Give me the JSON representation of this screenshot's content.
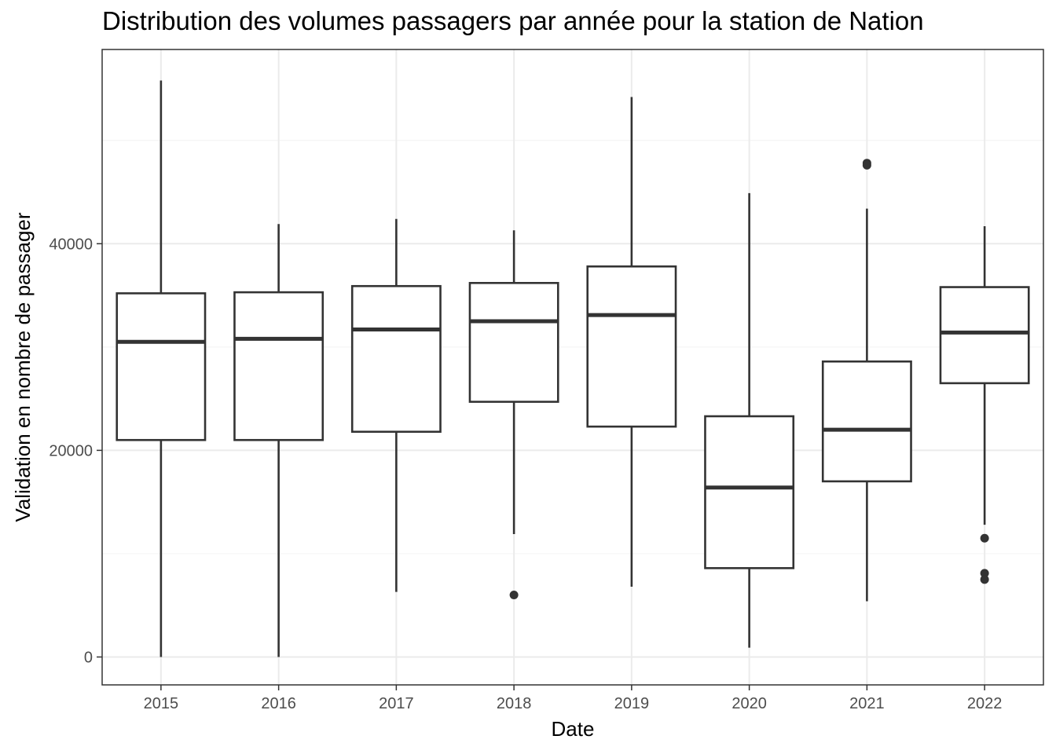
{
  "chart_data": {
    "type": "box",
    "title": "Distribution des volumes passagers par année pour la station de Nation",
    "xlabel": "Date",
    "ylabel": "Validation en nombre de passager",
    "ylim": [
      -2700,
      58800
    ],
    "yticks": [
      0,
      20000,
      40000
    ],
    "ytick_labels": [
      "0",
      "20000",
      "40000"
    ],
    "grid": true,
    "categories": [
      "2015",
      "2016",
      "2017",
      "2018",
      "2019",
      "2020",
      "2021",
      "2022"
    ],
    "boxes": [
      {
        "category": "2015",
        "whisker_low": 0,
        "q1": 21000,
        "median": 30500,
        "q3": 35200,
        "whisker_high": 55800,
        "outliers": []
      },
      {
        "category": "2016",
        "whisker_low": 0,
        "q1": 21000,
        "median": 30800,
        "q3": 35300,
        "whisker_high": 41900,
        "outliers": []
      },
      {
        "category": "2017",
        "whisker_low": 6300,
        "q1": 21800,
        "median": 31700,
        "q3": 35900,
        "whisker_high": 42400,
        "outliers": []
      },
      {
        "category": "2018",
        "whisker_low": 11900,
        "q1": 24700,
        "median": 32500,
        "q3": 36200,
        "whisker_high": 41300,
        "outliers": [
          6000
        ]
      },
      {
        "category": "2019",
        "whisker_low": 6800,
        "q1": 22300,
        "median": 33100,
        "q3": 37800,
        "whisker_high": 54200,
        "outliers": []
      },
      {
        "category": "2020",
        "whisker_low": 900,
        "q1": 8600,
        "median": 16400,
        "q3": 23300,
        "whisker_high": 44900,
        "outliers": []
      },
      {
        "category": "2021",
        "whisker_low": 5400,
        "q1": 17000,
        "median": 22000,
        "q3": 28600,
        "whisker_high": 43400,
        "outliers": [
          47800,
          47600
        ]
      },
      {
        "category": "2022",
        "whisker_low": 12800,
        "q1": 26500,
        "median": 31400,
        "q3": 35800,
        "whisker_high": 41700,
        "outliers": [
          11500,
          8100,
          7500
        ]
      }
    ],
    "colors": {
      "box_stroke": "#333333",
      "box_fill": "#ffffff",
      "grid_major": "#ebebeb",
      "grid_minor": "#f5f5f5",
      "panel_border": "#333333"
    }
  }
}
